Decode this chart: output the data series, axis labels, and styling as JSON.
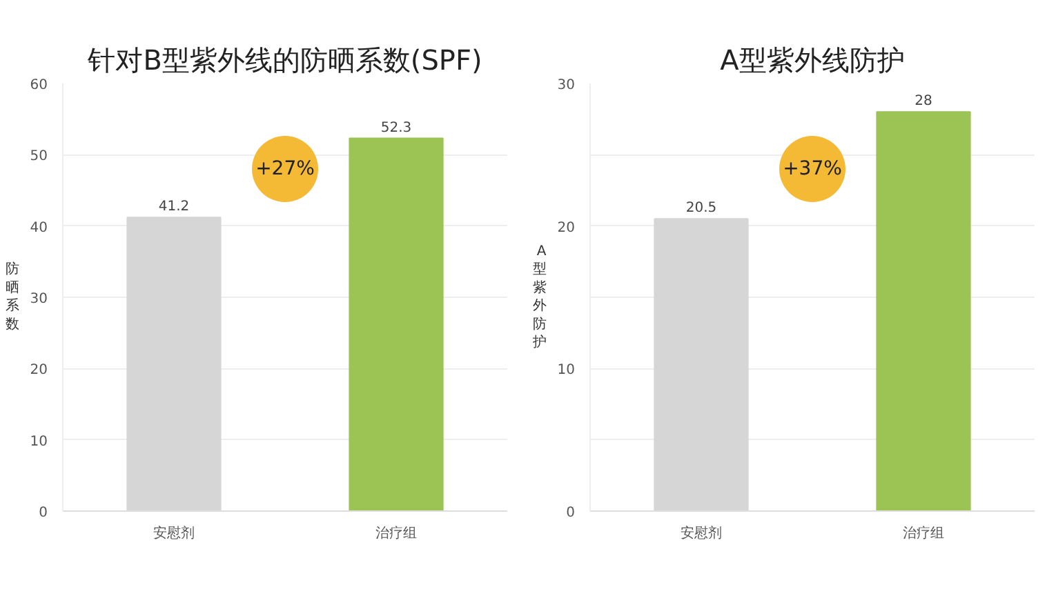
{
  "chart_data": [
    {
      "type": "bar",
      "title": "针对B型紫外线的防晒系数(SPF)",
      "ylabel": "防晒系数",
      "categories": [
        "安慰剂",
        "治疗组"
      ],
      "colors": [
        "#d6d6d6",
        "#9bc455"
      ],
      "values": [
        41.2,
        52.3
      ],
      "data_labels": true,
      "ylim": [
        0,
        60
      ],
      "yticks": [
        0,
        10,
        20,
        30,
        40,
        50,
        60
      ],
      "grid": "y",
      "annotations": [
        "+27%"
      ]
    },
    {
      "type": "bar",
      "title": "A型紫外线防护",
      "ylabel": "A型紫外防护",
      "categories": [
        "安慰剂",
        "治疗组"
      ],
      "colors": [
        "#d6d6d6",
        "#9bc455"
      ],
      "values": [
        20.5,
        28
      ],
      "data_labels": true,
      "ylim": [
        0,
        30
      ],
      "yticks": [
        0,
        {
          "value": 5,
          "label": null
        },
        10,
        {
          "value": 15,
          "label": null
        },
        20,
        {
          "value": 25,
          "label": null
        },
        30
      ],
      "grid": "y",
      "annotations": [
        "+37%"
      ]
    }
  ]
}
